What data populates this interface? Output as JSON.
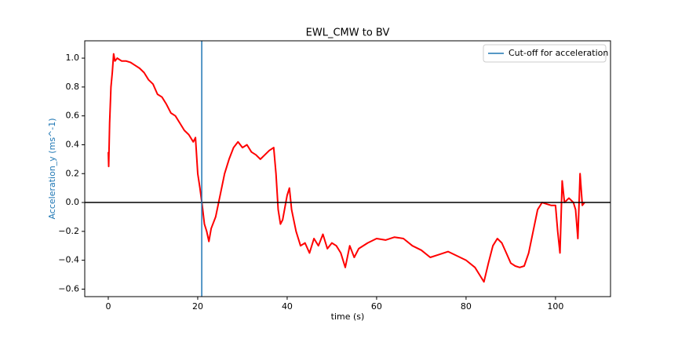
{
  "chart_data": {
    "type": "line",
    "title": "EWL_CMW to BV",
    "xlabel": "time (s)",
    "ylabel": "Acceleration_y (ms^-1)",
    "ylabel_color": "#1f77b4",
    "series": [
      {
        "color": "#ff0000",
        "x": [
          0,
          0.1,
          0.3,
          0.6,
          0.9,
          1.2,
          1.5,
          2,
          3,
          4,
          5,
          6,
          7,
          8,
          9,
          10,
          11,
          12,
          13,
          14,
          15,
          16,
          17,
          18,
          19,
          19.5,
          20,
          20.5,
          21,
          21.5,
          22,
          22.5,
          23,
          24,
          25,
          26,
          27,
          28,
          29,
          30,
          31,
          32,
          33,
          34,
          35,
          36,
          37,
          37.5,
          38,
          38.5,
          39,
          40,
          40.5,
          41,
          42,
          43,
          44,
          45,
          46,
          47,
          48,
          49,
          50,
          51,
          52,
          53,
          54,
          55,
          56,
          58,
          60,
          62,
          64,
          66,
          68,
          70,
          72,
          74,
          76,
          78,
          80,
          82,
          83,
          84,
          85,
          86,
          87,
          88,
          89,
          90,
          91,
          92,
          93,
          94,
          95,
          96,
          97,
          98,
          99,
          100,
          100.5,
          101,
          101.5,
          102,
          103,
          104,
          104.5,
          105,
          105.5,
          106,
          106.5
        ],
        "values": [
          0.35,
          0.25,
          0.55,
          0.8,
          0.9,
          1.03,
          0.98,
          1.0,
          0.98,
          0.98,
          0.97,
          0.95,
          0.93,
          0.9,
          0.85,
          0.82,
          0.75,
          0.73,
          0.68,
          0.62,
          0.6,
          0.55,
          0.5,
          0.47,
          0.42,
          0.45,
          0.2,
          0.1,
          -0.02,
          -0.15,
          -0.2,
          -0.27,
          -0.18,
          -0.1,
          0.05,
          0.2,
          0.3,
          0.38,
          0.42,
          0.38,
          0.4,
          0.35,
          0.33,
          0.3,
          0.33,
          0.36,
          0.38,
          0.2,
          -0.05,
          -0.15,
          -0.12,
          0.05,
          0.1,
          -0.05,
          -0.2,
          -0.3,
          -0.28,
          -0.35,
          -0.25,
          -0.3,
          -0.22,
          -0.32,
          -0.28,
          -0.3,
          -0.35,
          -0.45,
          -0.3,
          -0.38,
          -0.32,
          -0.28,
          -0.25,
          -0.26,
          -0.24,
          -0.25,
          -0.3,
          -0.33,
          -0.38,
          -0.36,
          -0.34,
          -0.37,
          -0.4,
          -0.45,
          -0.5,
          -0.55,
          -0.42,
          -0.3,
          -0.25,
          -0.28,
          -0.35,
          -0.42,
          -0.44,
          -0.45,
          -0.44,
          -0.35,
          -0.2,
          -0.05,
          0.0,
          -0.01,
          -0.02,
          -0.02,
          -0.2,
          -0.35,
          0.15,
          0.0,
          0.03,
          0.0,
          -0.05,
          -0.25,
          0.2,
          -0.02,
          0.0
        ]
      }
    ],
    "vline": {
      "name": "Cut-off for acceleration",
      "x": 20.9,
      "color": "#1f77b4"
    },
    "hline": {
      "y": 0,
      "color": "#000000"
    },
    "legend": "upper right",
    "xlim": [
      -5.26,
      112.3
    ],
    "ylim": [
      -0.652,
      1.12
    ],
    "xticks": [
      0,
      20,
      40,
      60,
      80,
      100
    ],
    "yticks": [
      {
        "value": -0.6,
        "label": "−0.6"
      },
      {
        "value": -0.4,
        "label": "−0.4"
      },
      {
        "value": -0.2,
        "label": "−0.2"
      },
      {
        "value": 0,
        "label": "0.0"
      },
      {
        "value": 0.2,
        "label": "0.2"
      },
      {
        "value": 0.4,
        "label": "0.4"
      },
      {
        "value": 0.6,
        "label": "0.6"
      },
      {
        "value": 0.8,
        "label": "0.8"
      },
      {
        "value": 1.0,
        "label": "1.0"
      }
    ]
  }
}
